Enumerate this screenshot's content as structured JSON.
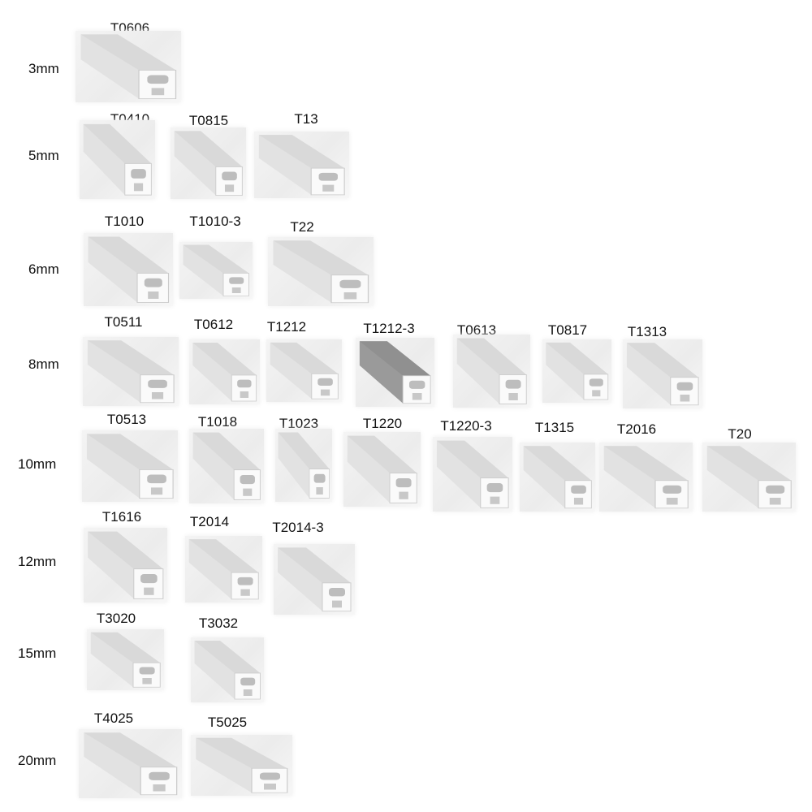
{
  "rows": [
    {
      "size": "3mm",
      "products": [
        "T0606"
      ]
    },
    {
      "size": "5mm",
      "products": [
        "T0410",
        "T0815",
        "T13"
      ]
    },
    {
      "size": "6mm",
      "products": [
        "T1010",
        "T1010-3",
        "T22"
      ]
    },
    {
      "size": "8mm",
      "products": [
        "T0511",
        "T0612",
        "T1212",
        "T1212-3",
        "T0613",
        "T0817",
        "T1313"
      ]
    },
    {
      "size": "10mm",
      "products": [
        "T0513",
        "T1018",
        "T1023",
        "T1220",
        "T1220-3",
        "T1315",
        "T2016",
        "T20"
      ]
    },
    {
      "size": "12mm",
      "products": [
        "T1616",
        "T2014",
        "T2014-3"
      ]
    },
    {
      "size": "15mm",
      "products": [
        "T3020",
        "T3032"
      ]
    },
    {
      "size": "20mm",
      "products": [
        "T4025",
        "T5025"
      ]
    }
  ]
}
